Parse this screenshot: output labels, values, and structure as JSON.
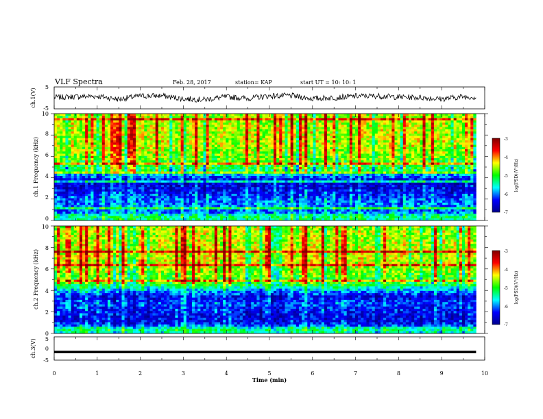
{
  "header": {
    "title": "VLF Spectra",
    "date": "Feb. 28, 2017",
    "station": "station= KAP",
    "start_ut": "start  UT =   10: 10: 1"
  },
  "chart_data": [
    {
      "type": "line",
      "ylabel": "ch.1(V)",
      "xlim": [
        0,
        10
      ],
      "ylim": [
        -5,
        5
      ],
      "yticks": [
        "5",
        "-5"
      ],
      "x": [
        0.0,
        0.5,
        1.0,
        1.5,
        2.0,
        2.5,
        3.0,
        3.5,
        4.0,
        4.5,
        5.0,
        5.5,
        6.0,
        6.5,
        7.0,
        7.5,
        8.0,
        8.5,
        9.0,
        9.5,
        9.8
      ],
      "values": [
        0.2,
        0.6,
        0.8,
        -0.6,
        0.9,
        1.0,
        -0.4,
        -0.8,
        0.5,
        -0.2,
        0.9,
        1.0,
        -0.3,
        0.1,
        0.8,
        0.9,
        0.4,
        0.2,
        -0.5,
        0.6,
        0.3
      ]
    },
    {
      "type": "heatmap",
      "ylabel": "ch.1 Frequency (kHz)",
      "xlim": [
        0,
        10
      ],
      "ylim": [
        0,
        10
      ],
      "data_xlim": [
        0,
        9.8
      ],
      "yticks": [
        "0",
        "2",
        "4",
        "6",
        "8",
        "10"
      ],
      "colorbar": {
        "label": "log(PSD)(V²/Hz)",
        "ticks": [
          "-3",
          "-4",
          "-5",
          "-6",
          "-7"
        ],
        "range": [
          -7,
          -3
        ]
      },
      "band_profile": [
        {
          "f": 0.0,
          "v": -5.5
        },
        {
          "f": 0.4,
          "v": -5.2
        },
        {
          "f": 0.8,
          "v": -6.2
        },
        {
          "f": 1.2,
          "v": -6.0
        },
        {
          "f": 2.0,
          "v": -6.1
        },
        {
          "f": 2.8,
          "v": -6.4
        },
        {
          "f": 3.4,
          "v": -6.6
        },
        {
          "f": 4.0,
          "v": -6.3
        },
        {
          "f": 4.6,
          "v": -5.3
        },
        {
          "f": 5.2,
          "v": -5.0
        },
        {
          "f": 6.0,
          "v": -4.7
        },
        {
          "f": 7.0,
          "v": -4.5
        },
        {
          "f": 8.5,
          "v": -4.5
        },
        {
          "f": 10.0,
          "v": -4.6
        }
      ]
    },
    {
      "type": "heatmap",
      "ylabel": "ch.2 Frequency (kHz)",
      "xlim": [
        0,
        10
      ],
      "ylim": [
        0,
        10
      ],
      "data_xlim": [
        0,
        9.8
      ],
      "yticks": [
        "0",
        "2",
        "4",
        "6",
        "8",
        "10"
      ],
      "colorbar": {
        "label": "log(PSD)(V²/Hz)",
        "ticks": [
          "-3",
          "-4",
          "-5",
          "-6",
          "-7"
        ],
        "range": [
          -7,
          -3
        ]
      },
      "band_profile": [
        {
          "f": 0.0,
          "v": -5.6
        },
        {
          "f": 0.4,
          "v": -5.2
        },
        {
          "f": 0.8,
          "v": -6.3
        },
        {
          "f": 1.2,
          "v": -6.5
        },
        {
          "f": 2.0,
          "v": -6.4
        },
        {
          "f": 2.8,
          "v": -6.2
        },
        {
          "f": 3.4,
          "v": -6.5
        },
        {
          "f": 4.0,
          "v": -5.8
        },
        {
          "f": 4.6,
          "v": -5.0
        },
        {
          "f": 5.2,
          "v": -4.9
        },
        {
          "f": 6.0,
          "v": -4.6
        },
        {
          "f": 7.0,
          "v": -4.4
        },
        {
          "f": 8.5,
          "v": -4.5
        },
        {
          "f": 10.0,
          "v": -4.6
        }
      ]
    },
    {
      "type": "line",
      "ylabel": "ch.3(V)",
      "xlabel": "Time  (min)",
      "xlim": [
        0,
        10
      ],
      "ylim": [
        -5,
        5
      ],
      "yticks": [
        "5",
        "0",
        "-5"
      ],
      "xticks": [
        "0",
        "1",
        "2",
        "3",
        "4",
        "5",
        "6",
        "7",
        "8",
        "9",
        "10"
      ],
      "x": [
        0.0,
        9.8
      ],
      "values": [
        -1.5,
        -1.5
      ]
    }
  ],
  "colors": {
    "background": "#ffffff",
    "axes": "#000000",
    "signal": "#000000",
    "colormap": [
      "#00008a",
      "#0000ff",
      "#00ffff",
      "#00ff00",
      "#ffff00",
      "#ff0000",
      "#800000"
    ]
  }
}
